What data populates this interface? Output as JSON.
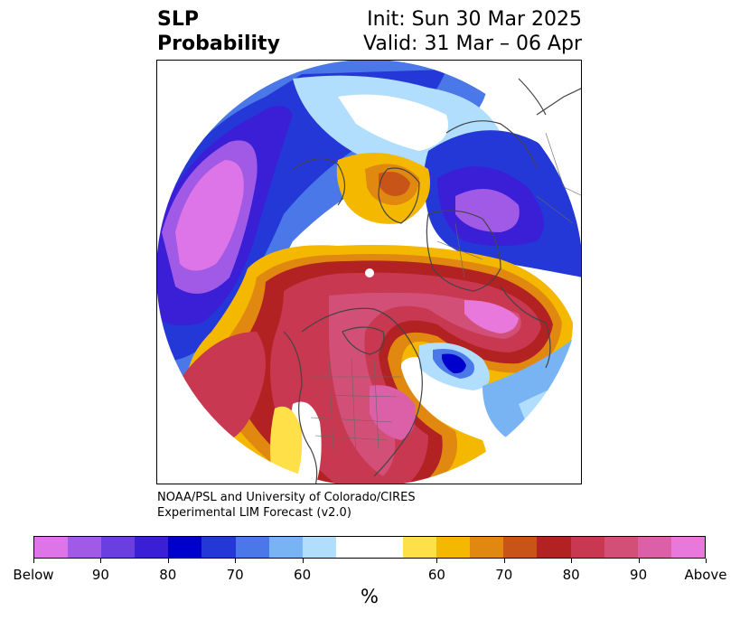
{
  "title": {
    "left_line1": "SLP",
    "left_line2": "Probability",
    "right_line1": "Init: Sun 30 Mar 2025",
    "right_line2": "Valid: 31 Mar – 06 Apr"
  },
  "credit": {
    "line1": "NOAA/PSL and University of Colorado/CIRES",
    "line2": "Experimental LIM Forecast (v2.0)"
  },
  "colorbar": {
    "colors": [
      "#dd74e8",
      "#a05ae6",
      "#6b3ee0",
      "#3a1fd6",
      "#0000cc",
      "#2438d8",
      "#4a78e8",
      "#78b4f4",
      "#b0defc",
      "#ffffff",
      "#ffffff",
      "#ffe048",
      "#f4b800",
      "#e08810",
      "#c85418",
      "#b22222",
      "#c83850",
      "#d25078",
      "#dc60a8",
      "#e878dc"
    ],
    "tick_labels": [
      "Below",
      "90",
      "80",
      "70",
      "60",
      "60",
      "70",
      "80",
      "90",
      "Above"
    ],
    "unit_label": "%"
  }
}
